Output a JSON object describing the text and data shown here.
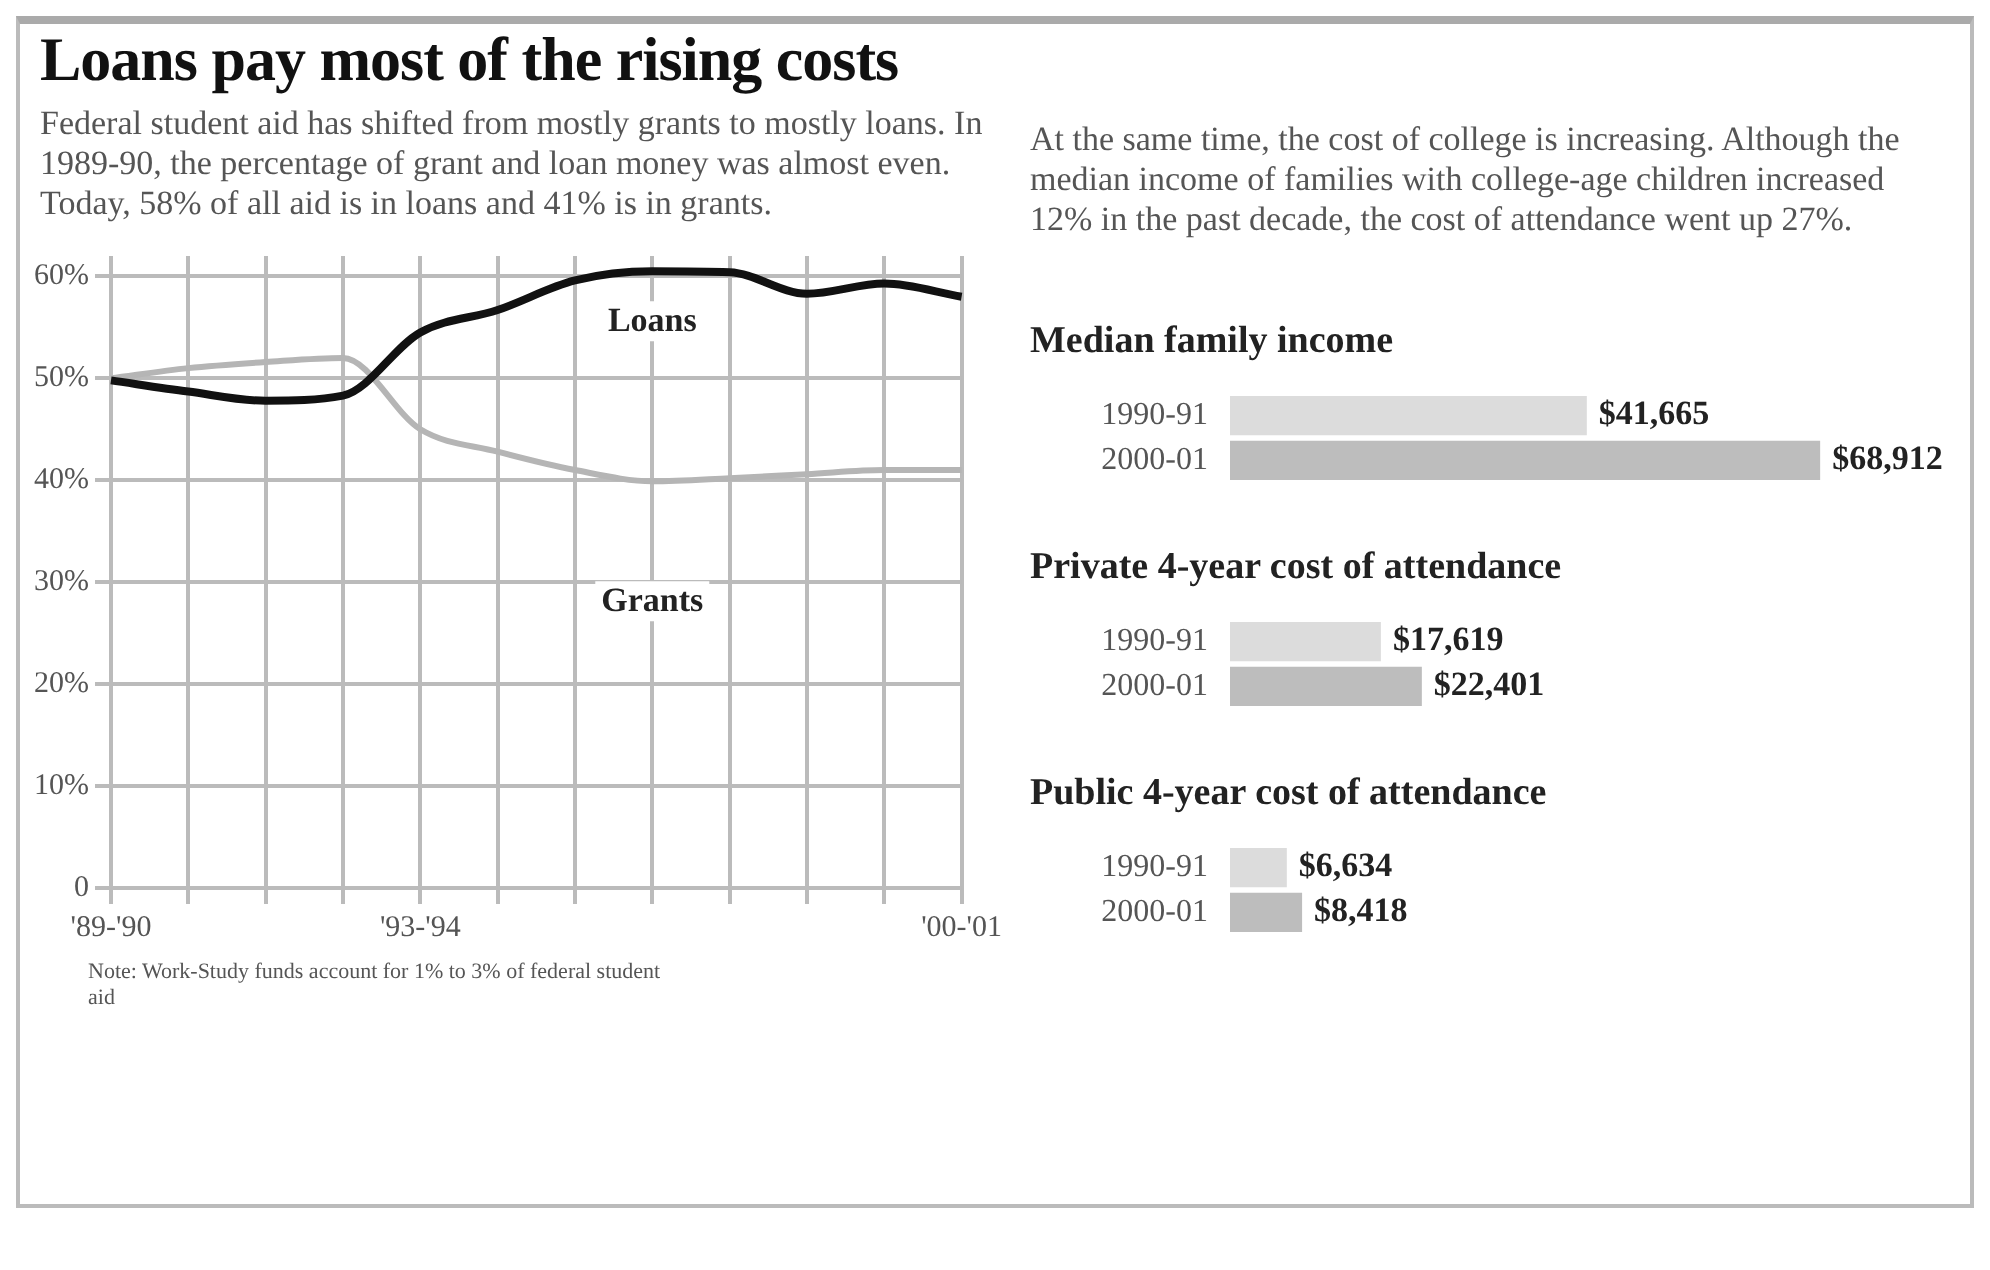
{
  "chart_data": [
    {
      "type": "line",
      "title": "Loans pay most of the rising costs",
      "subtitle": "Federal student aid has shifted from mostly grants to mostly loans. In 1989-90, the percentage of grant and loan money was almost even. Today, 58% of all aid is in loans and 41% is in grants.",
      "categories": [
        "'89-'90",
        null,
        null,
        null,
        "'93-'94",
        null,
        null,
        null,
        null,
        null,
        null,
        "'00-'01"
      ],
      "series": [
        {
          "name": "Loans",
          "color": "#111111",
          "values": [
            49.8,
            48.7,
            47.8,
            48.3,
            54.5,
            56.7,
            59.6,
            60.5,
            60.4,
            58.3,
            59.3,
            58
          ]
        },
        {
          "name": "Grants",
          "color": "#b5b5b5",
          "values": [
            50,
            51,
            51.6,
            52,
            45,
            42.8,
            41,
            39.9,
            40.2,
            40.6,
            41,
            41
          ]
        }
      ],
      "ylim": [
        0,
        62
      ],
      "yticks": [
        0,
        {
          "value": 10,
          "label": "10%"
        },
        {
          "value": 20,
          "label": "20%"
        },
        {
          "value": 30,
          "label": "30%"
        },
        {
          "value": 40,
          "label": "40%"
        },
        {
          "value": 50,
          "label": "50%"
        },
        {
          "value": 60,
          "label": "60%"
        }
      ],
      "grid": true,
      "annotations": [
        "Note: Work-Study funds account for 1% to 3% of federal student aid"
      ]
    },
    {
      "type": "other",
      "annotations": [
        "At the same time, the cost of college is increasing. Although the median income of families with college-age children increased 12% in the past decade, the cost of attendance went up 27%."
      ]
    },
    {
      "type": "bar",
      "orientation": "horizontal",
      "title": "Median family income",
      "categories": [
        "1990-91",
        "2000-01"
      ],
      "values": [
        41665,
        68912
      ],
      "colors": [
        "#dcdcdc",
        "#bdbdbd"
      ],
      "value_labels": [
        "$41,665",
        "$68,912"
      ],
      "tick_labels": "y"
    },
    {
      "type": "bar",
      "orientation": "horizontal",
      "title": "Private 4-year cost of attendance",
      "categories": [
        "1990-91",
        "2000-01"
      ],
      "values": [
        17619,
        22401
      ],
      "colors": [
        "#dcdcdc",
        "#bdbdbd"
      ],
      "value_labels": [
        "$17,619",
        "$22,401"
      ],
      "tick_labels": "y"
    },
    {
      "type": "bar",
      "orientation": "horizontal",
      "title": "Public 4-year cost of attendance",
      "categories": [
        "1990-91",
        "2000-01"
      ],
      "values": [
        6634,
        8418
      ],
      "colors": [
        "#dcdcdc",
        "#bdbdbd"
      ],
      "value_labels": [
        "$6,634",
        "$8,418"
      ],
      "tick_labels": "y"
    }
  ]
}
